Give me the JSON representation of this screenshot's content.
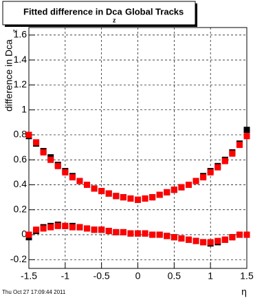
{
  "chart_data": {
    "type": "scatter",
    "title": {
      "main": "Fitted difference in Dca",
      "subscript": "z",
      "rest": "Global Tracks"
    },
    "y_label": {
      "main": "difference in Dca",
      "subscript": "z"
    },
    "x_label": "η",
    "footer": "Thu Oct 27 17:09:44 2011",
    "x": [
      -1.5,
      -1.4,
      -1.3,
      -1.2,
      -1.1,
      -1.0,
      -0.9,
      -0.8,
      -0.7,
      -0.6,
      -0.5,
      -0.4,
      -0.3,
      -0.2,
      -0.1,
      0,
      0.1,
      0.2,
      0.3,
      0.4,
      0.5,
      0.6,
      0.7,
      0.8,
      0.9,
      1.0,
      1.1,
      1.2,
      1.3,
      1.4,
      1.5
    ],
    "series": [
      {
        "color": "#000000",
        "values": [
          0.79,
          0.73,
          0.67,
          0.62,
          0.56,
          0.51,
          0.47,
          0.43,
          0.4,
          0.37,
          0.35,
          0.33,
          0.31,
          0.3,
          0.29,
          0.28,
          0.29,
          0.3,
          0.32,
          0.34,
          0.36,
          0.38,
          0.4,
          0.43,
          0.47,
          0.51,
          0.55,
          0.6,
          0.66,
          0.73,
          0.84
        ]
      },
      {
        "color": "#000000",
        "values": [
          -0.02,
          0.03,
          0.06,
          0.07,
          0.08,
          0.07,
          0.07,
          0.06,
          0.05,
          0.04,
          0.04,
          0.03,
          0.02,
          0.02,
          0.01,
          0.01,
          0.01,
          0.0,
          0.0,
          -0.01,
          -0.02,
          -0.03,
          -0.04,
          -0.05,
          -0.06,
          -0.07,
          -0.06,
          -0.04,
          -0.02,
          0.0,
          0.0
        ]
      },
      {
        "color": "#ff0000",
        "values": [
          0.8,
          0.74,
          0.66,
          0.6,
          0.55,
          0.5,
          0.46,
          0.43,
          0.4,
          0.37,
          0.35,
          0.33,
          0.31,
          0.3,
          0.29,
          0.28,
          0.29,
          0.3,
          0.32,
          0.34,
          0.36,
          0.38,
          0.4,
          0.43,
          0.46,
          0.5,
          0.54,
          0.59,
          0.65,
          0.72,
          0.79
        ]
      },
      {
        "color": "#ff0000",
        "values": [
          0.0,
          0.04,
          0.05,
          0.06,
          0.07,
          0.07,
          0.06,
          0.06,
          0.05,
          0.04,
          0.04,
          0.03,
          0.02,
          0.02,
          0.01,
          0.01,
          0.01,
          0.0,
          0.0,
          -0.01,
          -0.02,
          -0.03,
          -0.04,
          -0.05,
          -0.06,
          -0.06,
          -0.05,
          -0.04,
          -0.02,
          0.0,
          0.0
        ]
      }
    ],
    "xlim": [
      -1.5,
      1.5
    ],
    "xticks": [
      -1.5,
      -1,
      -0.5,
      0,
      0.5,
      1,
      1.5
    ],
    "ylim": [
      -0.27,
      1.66
    ],
    "yticks": [
      -0.2,
      0,
      0.2,
      0.4,
      0.6,
      0.8,
      1,
      1.2,
      1.4,
      1.6
    ],
    "grid": true
  }
}
